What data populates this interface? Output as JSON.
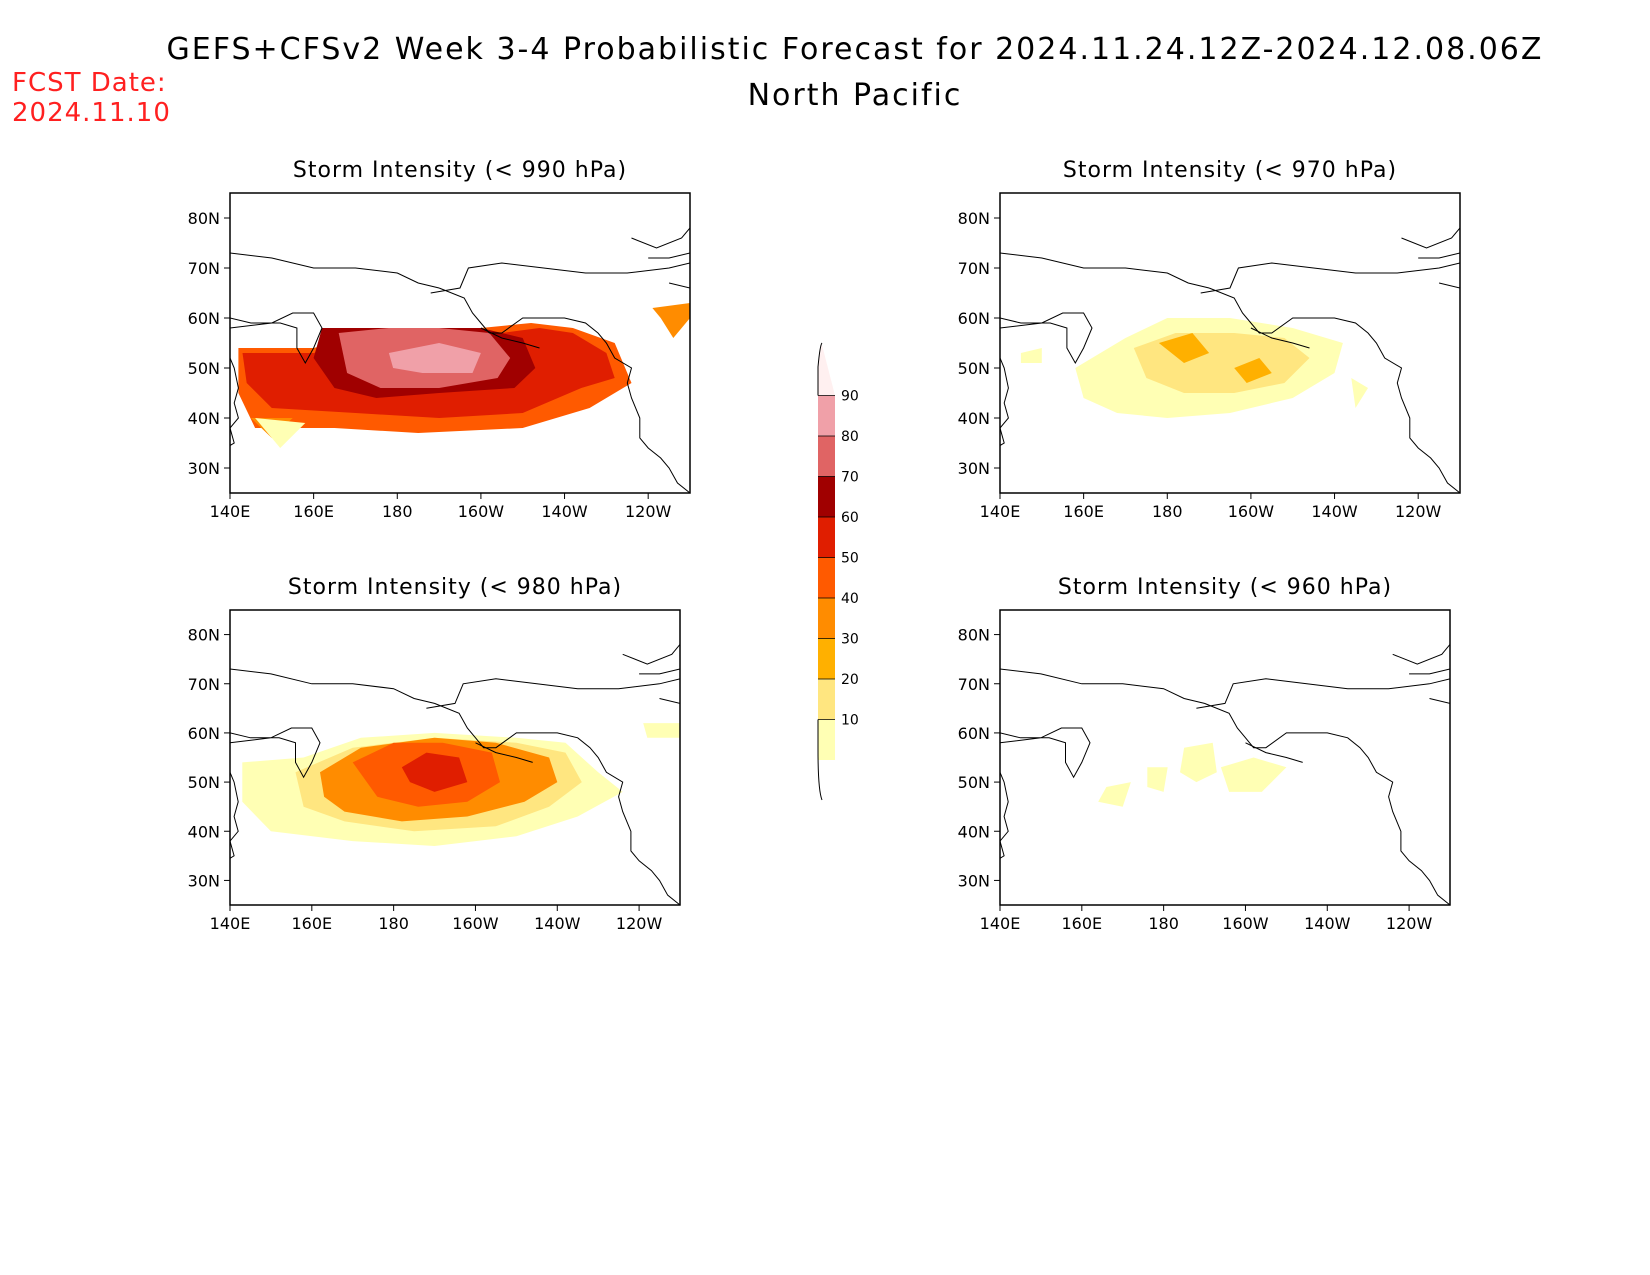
{
  "header": {
    "title": "GEFS+CFSv2 Week 3-4 Probabilistic Forecast for 2024.11.24.12Z-2024.12.08.06Z",
    "region": "North Pacific",
    "fcst_label": "FCST Date:",
    "fcst_date": "2024.11.10"
  },
  "axes": {
    "lon_ticks": [
      "140E",
      "160E",
      "180",
      "160W",
      "140W",
      "120W"
    ],
    "lat_ticks": [
      "80N",
      "70N",
      "60N",
      "50N",
      "40N",
      "30N"
    ],
    "lon_range": [
      140,
      250
    ],
    "lat_range": [
      25,
      85
    ]
  },
  "panels": [
    {
      "title": "Storm Intensity (< 990 hPa)",
      "threshold_hpa": 990,
      "regions": [
        {
          "level": 50,
          "poly": [
            [
              142,
              54
            ],
            [
              160,
              54
            ],
            [
              175,
              57
            ],
            [
              190,
              58
            ],
            [
              200,
              58
            ],
            [
              212,
              59
            ],
            [
              222,
              58
            ],
            [
              232,
              55
            ],
            [
              236,
              47
            ],
            [
              226,
              42
            ],
            [
              210,
              38
            ],
            [
              185,
              37
            ],
            [
              165,
              38
            ],
            [
              146,
              38
            ],
            [
              142,
              45
            ]
          ]
        },
        {
          "level": 60,
          "poly": [
            [
              143,
              53
            ],
            [
              160,
              53
            ],
            [
              175,
              56
            ],
            [
              192,
              57
            ],
            [
              205,
              57
            ],
            [
              214,
              58
            ],
            [
              222,
              57
            ],
            [
              230,
              53
            ],
            [
              232,
              48
            ],
            [
              224,
              46
            ],
            [
              210,
              41
            ],
            [
              190,
              40
            ],
            [
              170,
              41
            ],
            [
              150,
              42
            ],
            [
              144,
              47
            ]
          ]
        },
        {
          "level": 70,
          "poly": [
            [
              162,
              58
            ],
            [
              175,
              58
            ],
            [
              185,
              58
            ],
            [
              200,
              58
            ],
            [
              210,
              56
            ],
            [
              213,
              50
            ],
            [
              208,
              46
            ],
            [
              190,
              45
            ],
            [
              175,
              44
            ],
            [
              165,
              46
            ],
            [
              160,
              52
            ]
          ]
        },
        {
          "level": 80,
          "poly": [
            [
              166,
              57
            ],
            [
              178,
              58
            ],
            [
              190,
              58
            ],
            [
              202,
              57
            ],
            [
              207,
              52
            ],
            [
              204,
              48
            ],
            [
              190,
              46
            ],
            [
              176,
              46
            ],
            [
              168,
              49
            ]
          ]
        },
        {
          "level": 90,
          "poly": [
            [
              178,
              53
            ],
            [
              190,
              55
            ],
            [
              200,
              53
            ],
            [
              198,
              49
            ],
            [
              186,
              49
            ],
            [
              179,
              50
            ]
          ]
        },
        {
          "level": 40,
          "poly": [
            [
              145,
              40
            ],
            [
              150,
              36
            ],
            [
              155,
              40
            ]
          ]
        },
        {
          "level": 10,
          "poly": [
            [
              146,
              40
            ],
            [
              152,
              34
            ],
            [
              158,
              39
            ]
          ]
        },
        {
          "level": 40,
          "poly": [
            [
              241,
              62
            ],
            [
              250,
              63
            ],
            [
              250,
              60
            ],
            [
              246,
              56
            ],
            [
              243,
              60
            ]
          ]
        }
      ]
    },
    {
      "title": "Storm Intensity (< 970 hPa)",
      "threshold_hpa": 970,
      "regions": [
        {
          "level": 10,
          "poly": [
            [
              158,
              50
            ],
            [
              170,
              56
            ],
            [
              180,
              60
            ],
            [
              195,
              60
            ],
            [
              210,
              58
            ],
            [
              222,
              55
            ],
            [
              220,
              49
            ],
            [
              210,
              44
            ],
            [
              195,
              41
            ],
            [
              180,
              40
            ],
            [
              168,
              41
            ],
            [
              160,
              44
            ]
          ]
        },
        {
          "level": 20,
          "poly": [
            [
              172,
              54
            ],
            [
              182,
              57
            ],
            [
              196,
              57
            ],
            [
              208,
              56
            ],
            [
              214,
              52
            ],
            [
              208,
              47
            ],
            [
              196,
              45
            ],
            [
              184,
              45
            ],
            [
              175,
              48
            ]
          ]
        },
        {
          "level": 30,
          "poly": [
            [
              178,
              55
            ],
            [
              186,
              57
            ],
            [
              190,
              53
            ],
            [
              184,
              51
            ]
          ]
        },
        {
          "level": 30,
          "poly": [
            [
              196,
              50
            ],
            [
              202,
              52
            ],
            [
              205,
              49
            ],
            [
              199,
              47
            ]
          ]
        },
        {
          "level": 10,
          "poly": [
            [
              145,
              53
            ],
            [
              150,
              54
            ],
            [
              150,
              51
            ],
            [
              145,
              51
            ]
          ]
        },
        {
          "level": 10,
          "poly": [
            [
              224,
              48
            ],
            [
              228,
              46
            ],
            [
              225,
              42
            ]
          ]
        }
      ]
    },
    {
      "title": "Storm Intensity (< 980 hPa)",
      "threshold_hpa": 980,
      "regions": [
        {
          "level": 10,
          "poly": [
            [
              143,
              54
            ],
            [
              158,
              55
            ],
            [
              172,
              59
            ],
            [
              190,
              60
            ],
            [
              210,
              59
            ],
            [
              222,
              58
            ],
            [
              230,
              52
            ],
            [
              236,
              48
            ],
            [
              225,
              43
            ],
            [
              210,
              39
            ],
            [
              190,
              37
            ],
            [
              170,
              38
            ],
            [
              150,
              40
            ],
            [
              143,
              46
            ]
          ]
        },
        {
          "level": 20,
          "poly": [
            [
              156,
              52
            ],
            [
              170,
              57
            ],
            [
              190,
              59
            ],
            [
              210,
              58
            ],
            [
              222,
              56
            ],
            [
              226,
              50
            ],
            [
              218,
              45
            ],
            [
              205,
              41
            ],
            [
              185,
              40
            ],
            [
              168,
              42
            ],
            [
              158,
              45
            ]
          ]
        },
        {
          "level": 40,
          "poly": [
            [
              162,
              52
            ],
            [
              172,
              57
            ],
            [
              190,
              59
            ],
            [
              205,
              58
            ],
            [
              218,
              55
            ],
            [
              220,
              50
            ],
            [
              212,
              46
            ],
            [
              198,
              43
            ],
            [
              182,
              42
            ],
            [
              168,
              44
            ],
            [
              163,
              47
            ]
          ]
        },
        {
          "level": 50,
          "poly": [
            [
              170,
              54
            ],
            [
              180,
              58
            ],
            [
              192,
              58
            ],
            [
              204,
              56
            ],
            [
              206,
              50
            ],
            [
              198,
              46
            ],
            [
              186,
              45
            ],
            [
              176,
              47
            ]
          ]
        },
        {
          "level": 60,
          "poly": [
            [
              182,
              53
            ],
            [
              188,
              56
            ],
            [
              196,
              55
            ],
            [
              198,
              50
            ],
            [
              190,
              48
            ],
            [
              184,
              50
            ]
          ]
        },
        {
          "level": 10,
          "poly": [
            [
              241,
              62
            ],
            [
              250,
              62
            ],
            [
              250,
              59
            ],
            [
              242,
              59
            ]
          ]
        }
      ]
    },
    {
      "title": "Storm Intensity (< 960 hPa)",
      "threshold_hpa": 960,
      "regions": [
        {
          "level": 10,
          "poly": [
            [
              185,
              57
            ],
            [
              192,
              58
            ],
            [
              193,
              52
            ],
            [
              188,
              50
            ],
            [
              184,
              52
            ]
          ]
        },
        {
          "level": 10,
          "poly": [
            [
              166,
              49
            ],
            [
              172,
              50
            ],
            [
              170,
              45
            ],
            [
              164,
              46
            ]
          ]
        },
        {
          "level": 10,
          "poly": [
            [
              176,
              53
            ],
            [
              181,
              53
            ],
            [
              180,
              48
            ],
            [
              176,
              49
            ]
          ]
        },
        {
          "level": 10,
          "poly": [
            [
              194,
              53
            ],
            [
              202,
              55
            ],
            [
              210,
              53
            ],
            [
              204,
              48
            ],
            [
              196,
              48
            ]
          ]
        }
      ]
    }
  ],
  "colorbar": {
    "levels": [
      "10",
      "20",
      "30",
      "40",
      "50",
      "60",
      "70",
      "80",
      "90"
    ],
    "colors": [
      "#ffffb4",
      "#ffe680",
      "#ffb000",
      "#ff8c00",
      "#ff5a00",
      "#e01e00",
      "#a00000",
      "#e06464",
      "#f0a0a8",
      "#fff0f0"
    ]
  }
}
